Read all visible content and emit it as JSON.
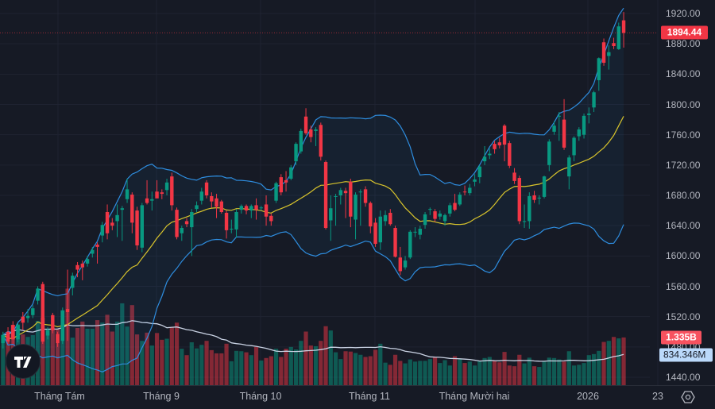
{
  "chart_data": {
    "type": "candlestick",
    "price_axis": {
      "ticks": [
        "1920.00",
        "1880.00",
        "1840.00",
        "1800.00",
        "1760.00",
        "1720.00",
        "1680.00",
        "1640.00",
        "1600.00",
        "1560.00",
        "1520.00",
        "1480.00",
        "1440.00"
      ],
      "tick_values": [
        1920,
        1880,
        1840,
        1800,
        1760,
        1720,
        1680,
        1640,
        1600,
        1560,
        1520,
        1480,
        1440
      ],
      "range": [
        1440,
        1920
      ]
    },
    "time_axis": {
      "labels": [
        "Tháng Tám",
        "Tháng 9",
        "Tháng 10",
        "Tháng 11",
        "Tháng Mười hai",
        "2026",
        "23"
      ]
    },
    "last_price": "1894.44",
    "volume_label": "1.335B",
    "volume_ma_label": "834.346M",
    "grid": true,
    "colors": {
      "up": "#089981",
      "down": "#f23645",
      "bollinger": "#2e8ddf",
      "basis": "#d8c42c",
      "volume_ma": "#c9d2e3",
      "background": "#161a25"
    },
    "ohlc": [
      [
        1485,
        1500,
        1478,
        1496
      ],
      [
        1500,
        1506,
        1484,
        1487
      ],
      [
        1509,
        1514,
        1484,
        1490
      ],
      [
        1490,
        1512,
        1486,
        1509
      ],
      [
        1520,
        1526,
        1502,
        1512
      ],
      [
        1518,
        1530,
        1512,
        1521
      ],
      [
        1522,
        1535,
        1518,
        1531
      ],
      [
        1541,
        1560,
        1536,
        1557
      ],
      [
        1563,
        1566,
        1484,
        1487
      ],
      [
        1495,
        1506,
        1490,
        1502
      ],
      [
        1522,
        1525,
        1498,
        1502
      ],
      [
        1497,
        1500,
        1480,
        1485
      ],
      [
        1488,
        1532,
        1484,
        1528
      ],
      [
        1530,
        1582,
        1488,
        1526
      ],
      [
        1558,
        1578,
        1548,
        1574
      ],
      [
        1588,
        1592,
        1572,
        1582
      ],
      [
        1590,
        1594,
        1568,
        1585
      ],
      [
        1590,
        1600,
        1586,
        1596
      ],
      [
        1603,
        1612,
        1598,
        1608
      ],
      [
        1615,
        1618,
        1590,
        1612
      ],
      [
        1627,
        1645,
        1618,
        1641
      ],
      [
        1658,
        1668,
        1622,
        1630
      ],
      [
        1644,
        1650,
        1634,
        1640
      ],
      [
        1646,
        1668,
        1625,
        1654
      ],
      [
        1661,
        1666,
        1620,
        1663
      ],
      [
        1675,
        1702,
        1670,
        1688
      ],
      [
        1681,
        1684,
        1630,
        1644
      ],
      [
        1660,
        1665,
        1608,
        1614
      ],
      [
        1611,
        1670,
        1605,
        1667
      ],
      [
        1676,
        1700,
        1668,
        1670
      ],
      [
        1673,
        1685,
        1660,
        1675
      ],
      [
        1685,
        1700,
        1678,
        1676
      ],
      [
        1684,
        1688,
        1675,
        1682
      ],
      [
        1687,
        1702,
        1680,
        1697
      ],
      [
        1705,
        1710,
        1660,
        1667
      ],
      [
        1661,
        1664,
        1622,
        1625
      ],
      [
        1630,
        1640,
        1620,
        1637
      ],
      [
        1646,
        1650,
        1638,
        1642
      ],
      [
        1638,
        1662,
        1600,
        1658
      ],
      [
        1662,
        1672,
        1658,
        1667
      ],
      [
        1673,
        1690,
        1668,
        1685
      ],
      [
        1697,
        1700,
        1676,
        1680
      ],
      [
        1679,
        1684,
        1664,
        1672
      ],
      [
        1676,
        1682,
        1650,
        1665
      ],
      [
        1672,
        1674,
        1656,
        1658
      ],
      [
        1657,
        1660,
        1623,
        1634
      ],
      [
        1636,
        1648,
        1630,
        1636
      ],
      [
        1635,
        1662,
        1624,
        1658
      ],
      [
        1661,
        1668,
        1656,
        1666
      ],
      [
        1666,
        1668,
        1655,
        1660
      ],
      [
        1660,
        1668,
        1650,
        1666
      ],
      [
        1667,
        1676,
        1648,
        1661
      ],
      [
        1663,
        1666,
        1660,
        1664
      ],
      [
        1668,
        1680,
        1640,
        1652
      ],
      [
        1653,
        1656,
        1640,
        1646
      ],
      [
        1673,
        1698,
        1670,
        1696
      ],
      [
        1704,
        1708,
        1680,
        1684
      ],
      [
        1700,
        1712,
        1685,
        1697
      ],
      [
        1702,
        1720,
        1700,
        1717
      ],
      [
        1725,
        1750,
        1720,
        1748
      ],
      [
        1738,
        1768,
        1735,
        1765
      ],
      [
        1784,
        1795,
        1760,
        1762
      ],
      [
        1767,
        1772,
        1750,
        1757
      ],
      [
        1765,
        1770,
        1745,
        1767
      ],
      [
        1773,
        1776,
        1726,
        1731
      ],
      [
        1724,
        1726,
        1635,
        1637
      ],
      [
        1647,
        1680,
        1620,
        1663
      ],
      [
        1679,
        1682,
        1640,
        1679
      ],
      [
        1680,
        1690,
        1668,
        1687
      ],
      [
        1686,
        1690,
        1650,
        1683
      ],
      [
        1698,
        1702,
        1638,
        1652
      ],
      [
        1648,
        1684,
        1622,
        1681
      ],
      [
        1685,
        1688,
        1640,
        1685
      ],
      [
        1688,
        1692,
        1665,
        1670
      ],
      [
        1670,
        1672,
        1630,
        1639
      ],
      [
        1644,
        1650,
        1612,
        1616
      ],
      [
        1618,
        1660,
        1608,
        1652
      ],
      [
        1646,
        1660,
        1640,
        1654
      ],
      [
        1657,
        1662,
        1640,
        1642
      ],
      [
        1637,
        1640,
        1598,
        1599
      ],
      [
        1598,
        1612,
        1575,
        1580
      ],
      [
        1585,
        1600,
        1582,
        1594
      ],
      [
        1598,
        1634,
        1596,
        1632
      ],
      [
        1632,
        1638,
        1625,
        1632
      ],
      [
        1628,
        1640,
        1622,
        1636
      ],
      [
        1641,
        1658,
        1636,
        1655
      ],
      [
        1661,
        1664,
        1654,
        1662
      ],
      [
        1659,
        1662,
        1645,
        1649
      ],
      [
        1652,
        1660,
        1648,
        1656
      ],
      [
        1646,
        1656,
        1640,
        1654
      ],
      [
        1656,
        1670,
        1652,
        1667
      ],
      [
        1670,
        1682,
        1659,
        1661
      ],
      [
        1668,
        1684,
        1666,
        1681
      ],
      [
        1685,
        1693,
        1680,
        1684
      ],
      [
        1683,
        1695,
        1680,
        1690
      ],
      [
        1698,
        1708,
        1692,
        1701
      ],
      [
        1704,
        1720,
        1696,
        1718
      ],
      [
        1725,
        1745,
        1720,
        1731
      ],
      [
        1733,
        1742,
        1728,
        1735
      ],
      [
        1748,
        1752,
        1735,
        1741
      ],
      [
        1750,
        1756,
        1742,
        1746
      ],
      [
        1772,
        1774,
        1725,
        1747
      ],
      [
        1749,
        1752,
        1716,
        1719
      ],
      [
        1710,
        1716,
        1695,
        1699
      ],
      [
        1703,
        1706,
        1642,
        1646
      ],
      [
        1645,
        1668,
        1637,
        1646
      ],
      [
        1646,
        1684,
        1636,
        1679
      ],
      [
        1680,
        1686,
        1670,
        1674
      ],
      [
        1676,
        1680,
        1668,
        1677
      ],
      [
        1678,
        1706,
        1676,
        1705
      ],
      [
        1720,
        1754,
        1712,
        1751
      ],
      [
        1764,
        1778,
        1760,
        1772
      ],
      [
        1784,
        1790,
        1752,
        1785
      ],
      [
        1780,
        1807,
        1740,
        1743
      ],
      [
        1705,
        1733,
        1688,
        1730
      ],
      [
        1733,
        1758,
        1725,
        1756
      ],
      [
        1758,
        1770,
        1752,
        1767
      ],
      [
        1760,
        1788,
        1755,
        1785
      ],
      [
        1786,
        1796,
        1775,
        1788
      ],
      [
        1796,
        1818,
        1790,
        1816
      ],
      [
        1832,
        1862,
        1818,
        1861
      ],
      [
        1882,
        1887,
        1851,
        1855
      ],
      [
        1864,
        1878,
        1846,
        1869
      ],
      [
        1881,
        1888,
        1873,
        1877
      ],
      [
        1873,
        1908,
        1872,
        1903
      ],
      [
        1911,
        1922,
        1875,
        1894.44
      ]
    ],
    "volume_billions": [
      1.4,
      1.44,
      1.69,
      1.7,
      1.42,
      1.35,
      1.4,
      1.8,
      1.89,
      1.58,
      1.6,
      1.58,
      2.1,
      2.7,
      1.33,
      1.6,
      1.78,
      1.58,
      1.58,
      1.82,
      1.75,
      1.97,
      1.5,
      1.78,
      2.29,
      1.64,
      2.24,
      1.42,
      1.24,
      1.47,
      1.11,
      1.46,
      1.27,
      1.3,
      1.62,
      1.75,
      1.02,
      0.84,
      1.2,
      1.03,
      1.13,
      1.24,
      0.98,
      0.89,
      0.89,
      1.16,
      0.67,
      0.96,
      0.95,
      0.92,
      0.84,
      1.07,
      0.69,
      0.76,
      0.81,
      1.02,
      0.79,
      1.02,
      1.07,
      1.0,
      1.24,
      1.5,
      1.11,
      1.09,
      1.24,
      1.65,
      1.53,
      0.92,
      0.73,
      0.95,
      0.94,
      0.9,
      0.85,
      0.79,
      0.81,
      0.99,
      1.16,
      0.63,
      0.57,
      0.85,
      0.68,
      0.61,
      0.72,
      0.66,
      0.68,
      0.68,
      0.73,
      0.78,
      0.62,
      0.7,
      0.55,
      0.81,
      0.72,
      0.62,
      0.66,
      0.55,
      0.68,
      0.76,
      0.79,
      0.68,
      0.64,
      0.93,
      0.55,
      0.53,
      0.85,
      0.61,
      0.77,
      0.53,
      0.51,
      0.66,
      0.77,
      0.76,
      0.72,
      0.66,
      0.95,
      0.55,
      0.57,
      0.62,
      0.84,
      0.87,
      0.96,
      1.21,
      1.24,
      1.35,
      1.31,
      1.335
    ]
  }
}
